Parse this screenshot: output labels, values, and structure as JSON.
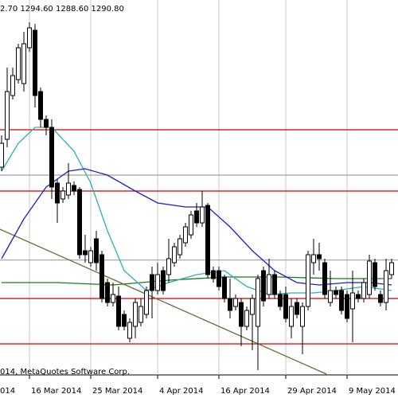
{
  "chart_data": {
    "type": "candlestick",
    "header": "2.70 1294.60 1288.60 1290.80",
    "copyright": "014, MetaQuotes Software Corp.",
    "clipped_date_label": "014",
    "ylim": [
      1259,
      1400
    ],
    "up_color": "#ffffff",
    "down_color": "#000000",
    "open": [
      1337,
      1347.5,
      1364,
      1370,
      1368.5,
      1382,
      1388.6,
      1365.5,
      1355,
      1352,
      1331,
      1325,
      1326.5,
      1330.1,
      1328.6,
      1305.5,
      1301,
      1310,
      1304,
      1293.5,
      1286,
      1288.4,
      1281.5,
      1272.5,
      1277,
      1278.5,
      1281.5,
      1296.5,
      1290.5,
      1298,
      1296.5,
      1301,
      1304,
      1308.5,
      1311.5,
      1320.5,
      1316,
      1322.6,
      1298,
      1298,
      1295.6,
      1287.5,
      1284.5,
      1286,
      1277,
      1281.5,
      1277,
      1298,
      1289,
      1296.5,
      1289,
      1289,
      1277,
      1286,
      1277,
      1284.5,
      1301,
      1304,
      1301,
      1286,
      1290.5,
      1290.5,
      1289,
      1283.6,
      1289,
      1287.5,
      1289,
      1301,
      1289,
      1286,
      1296.5
    ],
    "high": [
      1349,
      1374.5,
      1374.5,
      1383.5,
      1388,
      1391.6,
      1391,
      1367,
      1356.5,
      1355,
      1332.5,
      1329.5,
      1338.5,
      1331.6,
      1329.5,
      1311.5,
      1307,
      1313,
      1305.5,
      1295,
      1293.5,
      1292,
      1283,
      1280,
      1287.5,
      1287.5,
      1292,
      1299.5,
      1301,
      1299.5,
      1310,
      1308.5,
      1311.5,
      1316,
      1320.5,
      1323.5,
      1328,
      1323.5,
      1299.5,
      1299.5,
      1296.5,
      1295,
      1289,
      1287.5,
      1284.5,
      1289,
      1296.5,
      1299.5,
      1302.5,
      1298,
      1290.5,
      1292,
      1287.5,
      1287.5,
      1286,
      1305.5,
      1310,
      1308.5,
      1302.5,
      1298,
      1292,
      1292,
      1290.5,
      1298,
      1290.5,
      1295,
      1304,
      1302.5,
      1290.5,
      1302.5,
      1302.5
    ],
    "low": [
      1335.5,
      1344.5,
      1362.5,
      1368.5,
      1365.5,
      1380.5,
      1359.5,
      1352,
      1349,
      1325,
      1316,
      1323.5,
      1325,
      1326.5,
      1302.5,
      1301,
      1299.5,
      1298,
      1286,
      1284.5,
      1284.5,
      1275.5,
      1275.5,
      1271,
      1272.5,
      1277,
      1280,
      1280,
      1289,
      1289,
      1293.5,
      1299.5,
      1302.5,
      1307,
      1310,
      1314.5,
      1314.5,
      1295,
      1293.5,
      1290.5,
      1286,
      1280,
      1283,
      1269.5,
      1275.5,
      1268,
      1260.5,
      1284.5,
      1287.5,
      1287.5,
      1283,
      1278.5,
      1272.5,
      1280,
      1266.5,
      1283,
      1296.5,
      1298,
      1287.5,
      1284.5,
      1287.5,
      1281.5,
      1278.5,
      1271,
      1286,
      1286,
      1287.5,
      1290.5,
      1284.5,
      1283,
      1295
    ],
    "close": [
      1346,
      1365.5,
      1371.5,
      1382,
      1383.5,
      1389.5,
      1364,
      1355,
      1352,
      1329.5,
      1323.5,
      1328,
      1331,
      1328,
      1304,
      1304,
      1305.5,
      1301,
      1287.5,
      1286,
      1289,
      1277,
      1277,
      1278.5,
      1286,
      1284.5,
      1290.5,
      1290.5,
      1296.5,
      1290.5,
      1302.5,
      1307,
      1310,
      1314.5,
      1319,
      1316,
      1322,
      1296.5,
      1295,
      1292,
      1287.5,
      1283,
      1287.5,
      1277,
      1283,
      1287.5,
      1295,
      1286.6,
      1296.5,
      1289,
      1284.5,
      1280,
      1284.5,
      1281.5,
      1284.5,
      1304,
      1304,
      1302.5,
      1289,
      1290.5,
      1289,
      1283,
      1280,
      1289.6,
      1287.5,
      1293.5,
      1301.6,
      1292,
      1286,
      1298,
      1301
    ],
    "xticks": [
      {
        "value": 5,
        "label": "16 Mar 2014"
      },
      {
        "value": 16,
        "label": "25 Mar 2014"
      },
      {
        "value": 28,
        "label": "4 Apr 2014"
      },
      {
        "value": 39,
        "label": "16 Apr 2014"
      },
      {
        "value": 51,
        "label": "29 Apr 2014"
      },
      {
        "value": 62,
        "label": "9 May 2014"
      }
    ],
    "levels": [
      {
        "value": 1351.1,
        "color": "#cc0000"
      },
      {
        "value": 1328,
        "color": "#cc0000"
      },
      {
        "value": 1287.5,
        "color": "#cc0000"
      },
      {
        "value": 1270.4,
        "color": "#cc0000"
      },
      {
        "value": 1334,
        "color": "#a0a0a0"
      },
      {
        "value": 1302,
        "color": "#a0a0a0"
      }
    ],
    "series": [
      {
        "color": "#1a7a1a",
        "x": [
          0,
          10,
          20,
          30,
          40,
          50,
          60,
          70
        ],
        "values": [
          1293.5,
          1293.5,
          1292.6,
          1294.4,
          1295.6,
          1295.6,
          1295,
          1295
        ]
      },
      {
        "color": "#6b6b3a",
        "x": [
          -0.3,
          58.3
        ],
        "values": [
          1313.6,
          1259
        ]
      },
      {
        "color": "#2ab0b0",
        "x": [
          0,
          3,
          6,
          9,
          13,
          16,
          19,
          22,
          26,
          30,
          35,
          40,
          44,
          48,
          52,
          56,
          60,
          65,
          70
        ],
        "values": [
          1335.5,
          1346,
          1352,
          1352,
          1343,
          1331,
          1313,
          1298,
          1290.5,
          1293.5,
          1296.5,
          1298,
          1292,
          1289,
          1289.6,
          1289.6,
          1290.5,
          1292,
          1290.5
        ]
      },
      {
        "color": "#1e1ec8",
        "x": [
          0,
          4,
          8,
          12,
          15,
          19,
          24,
          28,
          33,
          37,
          41,
          45,
          49,
          53,
          57,
          62,
          66,
          70
        ],
        "values": [
          1302.5,
          1317.5,
          1329.5,
          1335.5,
          1336.4,
          1334,
          1328,
          1323.5,
          1322,
          1322,
          1314.5,
          1305.5,
          1298,
          1293.5,
          1292.6,
          1293.5,
          1293.5,
          1292.6
        ]
      }
    ]
  }
}
